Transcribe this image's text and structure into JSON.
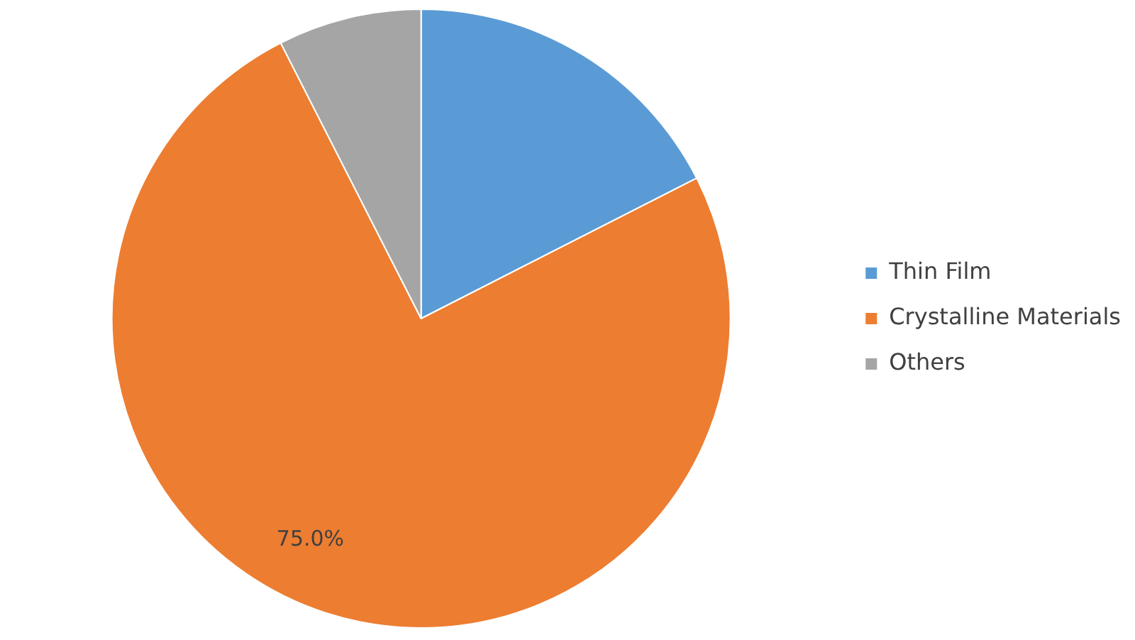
{
  "chart_data": {
    "type": "pie",
    "categories": [
      "Thin Film",
      "Crystalline Materials",
      "Others"
    ],
    "values": [
      17.5,
      75,
      7.5
    ],
    "colors": [
      "#5b9bd5",
      "#ed7d31",
      "#a5a5a5"
    ],
    "value_labels": [
      null,
      "75.0%",
      null
    ],
    "legend": "right"
  }
}
